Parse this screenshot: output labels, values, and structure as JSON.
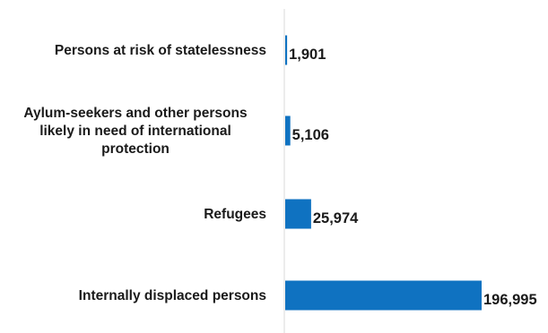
{
  "chart_data": {
    "type": "bar",
    "orientation": "horizontal",
    "categories": [
      "Persons at risk of statelessness",
      "Aylum-seekers and other persons likely in need of international protection",
      "Refugees",
      "Internally displaced persons"
    ],
    "category_label_lines": [
      [
        "Persons at risk of statelessness"
      ],
      [
        "Aylum-seekers and other persons",
        "likely in need of international",
        "protection"
      ],
      [
        "Refugees"
      ],
      [
        "Internally displaced persons"
      ]
    ],
    "values": [
      1901,
      5106,
      25974,
      196995
    ],
    "value_labels": [
      "1,901",
      "5,106",
      "25,974",
      "196,995"
    ],
    "title": "",
    "xlabel": "",
    "ylabel": "",
    "xlim": [
      0,
      196995
    ],
    "grid": false,
    "legend": "none",
    "bar_color": "#0F72C1",
    "axis_color": "#d9d9d9"
  }
}
